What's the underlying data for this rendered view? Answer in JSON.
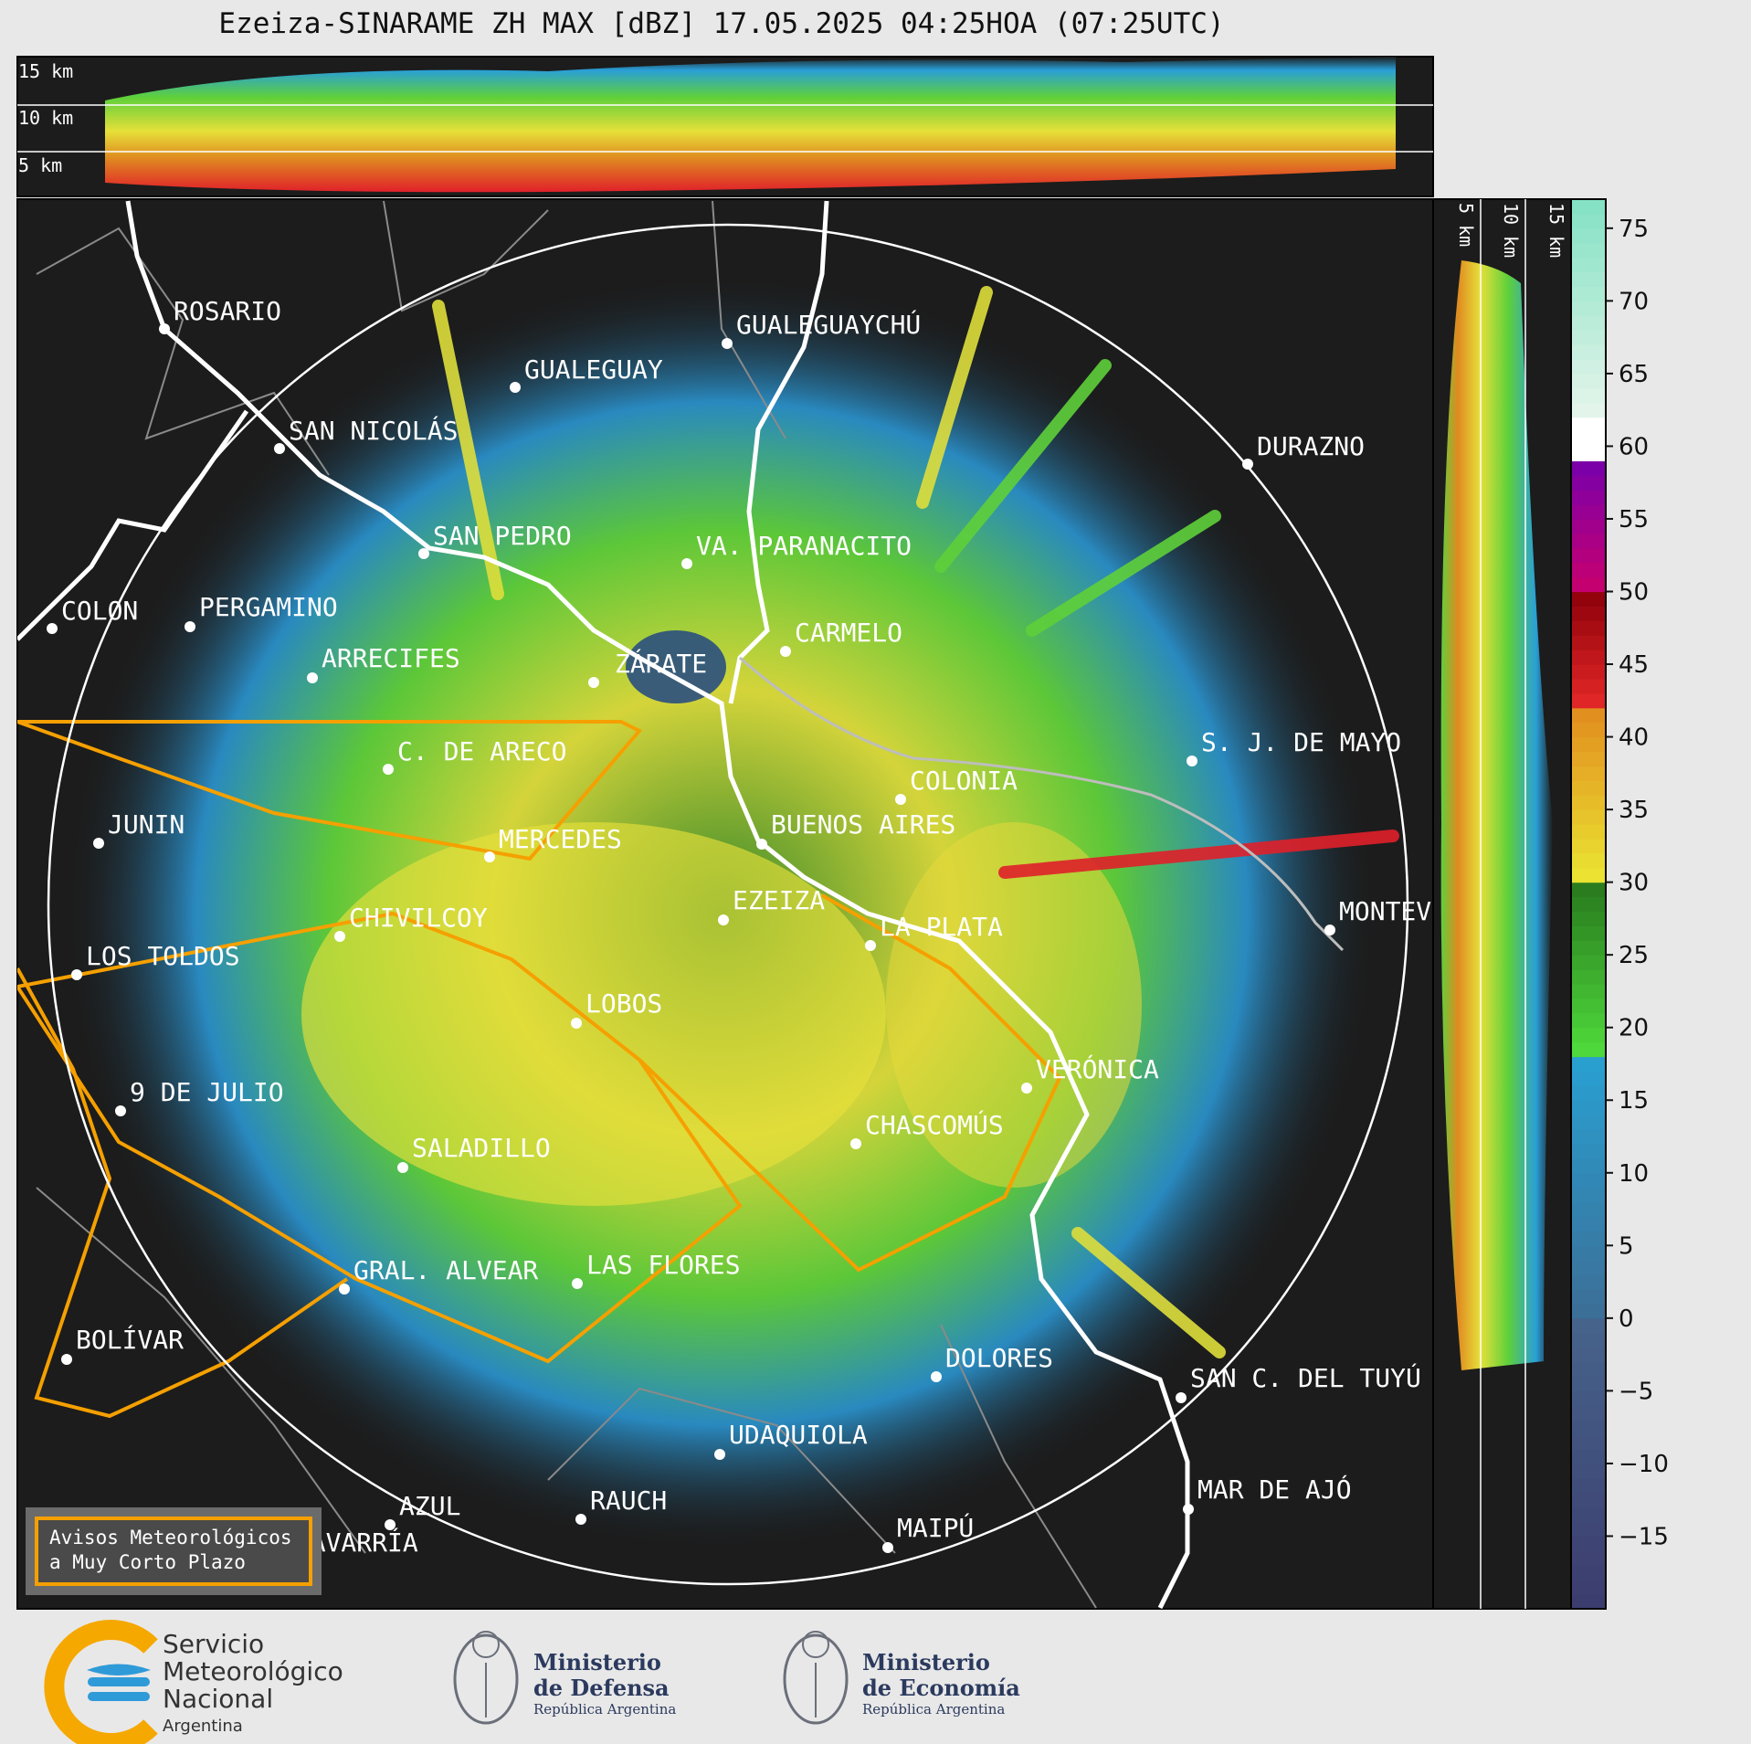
{
  "title": "Ezeiza-SINARAME ZH MAX [dBZ] 17.05.2025 04:25HOA (07:25UTC)",
  "height_labels_top": [
    "15 km",
    "10 km",
    "5 km"
  ],
  "height_labels_side": [
    "5 km",
    "10 km",
    "15 km"
  ],
  "colorbar": {
    "ticks": [
      "75",
      "70",
      "65",
      "60",
      "55",
      "50",
      "45",
      "40",
      "35",
      "30",
      "25",
      "20",
      "15",
      "10",
      "5",
      "0",
      "−5",
      "−10",
      "−15"
    ],
    "range": [
      -20,
      77
    ]
  },
  "cities": [
    {
      "name": "ROSARIO"
    },
    {
      "name": "GUALEGUAYCHÚ"
    },
    {
      "name": "GUALEGUAY"
    },
    {
      "name": "SAN NICOLÁS"
    },
    {
      "name": "DURAZNO"
    },
    {
      "name": "SAN PEDRO"
    },
    {
      "name": "VA. PARANACITO"
    },
    {
      "name": "COLON"
    },
    {
      "name": "PERGAMINO"
    },
    {
      "name": "CARMELO"
    },
    {
      "name": "ARRECIFES"
    },
    {
      "name": "ZÁRATE"
    },
    {
      "name": "C. DE ARECO"
    },
    {
      "name": "S. J. DE MAYO"
    },
    {
      "name": "COLONIA"
    },
    {
      "name": "JUNIN"
    },
    {
      "name": "MERCEDES"
    },
    {
      "name": "BUENOS AIRES"
    },
    {
      "name": "EZEIZA"
    },
    {
      "name": "LA PLATA"
    },
    {
      "name": "MONTEVIDEO"
    },
    {
      "name": "CHIVILCOY"
    },
    {
      "name": "LOS TOLDOS"
    },
    {
      "name": "LOBOS"
    },
    {
      "name": "VERÓNICA"
    },
    {
      "name": "9 DE JULIO"
    },
    {
      "name": "CHASCOMÚS"
    },
    {
      "name": "SALADILLO"
    },
    {
      "name": "GRAL. ALVEAR"
    },
    {
      "name": "LAS FLORES"
    },
    {
      "name": "BOLÍVAR"
    },
    {
      "name": "DOLORES"
    },
    {
      "name": "SAN C. DEL TUYÚ"
    },
    {
      "name": "UDAQUIOLA"
    },
    {
      "name": "AZUL"
    },
    {
      "name": "RAUCH"
    },
    {
      "name": "MAR DE AJÓ"
    },
    {
      "name": "OLAVARRÍA"
    },
    {
      "name": "MAIPÚ"
    }
  ],
  "avisos": {
    "line1": "Avisos Meteorológicos",
    "line2": "a Muy Corto Plazo"
  },
  "logos": {
    "smn": {
      "line1": "Servicio",
      "line2": "Meteorológico",
      "line3": "Nacional",
      "line4": "Argentina"
    },
    "defensa": {
      "line1": "Ministerio",
      "line2": "de Defensa",
      "sub": "República Argentina"
    },
    "economia": {
      "line1": "Ministerio",
      "line2": "de Economía",
      "sub": "República Argentina"
    }
  },
  "colors": {
    "background": "#1c1c1c",
    "warning_outline": "#f5a000",
    "frame": "#e8e8e8"
  }
}
